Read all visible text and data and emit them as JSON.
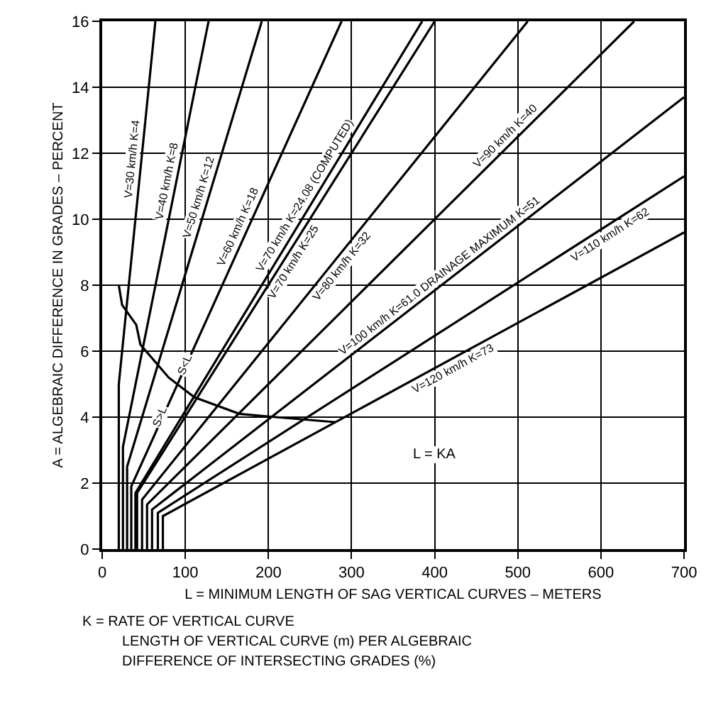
{
  "chart_data": {
    "type": "line",
    "xlabel": "L = MINIMUM LENGTH OF SAG VERTICAL CURVES – METERS",
    "ylabel": "A = ALGEBRAIC DIFFERENCE IN GRADES – PERCENT",
    "series": [
      {
        "name": "V=30 km/h K=4",
        "color": "#000000",
        "x": [
          20,
          20,
          64
        ],
        "values": [
          0,
          5,
          16
        ]
      },
      {
        "name": "V=40 km/h K=8",
        "color": "#000000",
        "x": [
          25,
          25,
          128
        ],
        "values": [
          0,
          3.1,
          16
        ]
      },
      {
        "name": "V=50 km/h K=12",
        "color": "#000000",
        "x": [
          30,
          30,
          192
        ],
        "values": [
          0,
          2.5,
          16
        ]
      },
      {
        "name": "V=60 km/h K=18",
        "color": "#000000",
        "x": [
          35,
          35,
          288
        ],
        "values": [
          0,
          1.9,
          16
        ]
      },
      {
        "name": "V=70 km/h K=24.08 (COMPUTED)",
        "color": "#000000",
        "x": [
          40,
          40,
          385
        ],
        "values": [
          0,
          1.7,
          16
        ]
      },
      {
        "name": "V=70 km/h K=25",
        "color": "#000000",
        "x": [
          42,
          42,
          400
        ],
        "values": [
          0,
          1.7,
          16
        ]
      },
      {
        "name": "V=80 km/h K=32",
        "color": "#000000",
        "x": [
          48,
          48,
          512
        ],
        "values": [
          0,
          1.5,
          16
        ]
      },
      {
        "name": "V=90 km/h K=40",
        "color": "#000000",
        "x": [
          54,
          54,
          640
        ],
        "values": [
          0,
          1.35,
          16
        ]
      },
      {
        "name": "V=100 km/h K=61.0 DRAINAGE MAXIMUM K=51",
        "color": "#000000",
        "x": [
          60,
          60,
          700
        ],
        "values": [
          0,
          1.2,
          13.7
        ]
      },
      {
        "name": "V=110 km/h K=62",
        "color": "#000000",
        "x": [
          67,
          67,
          700
        ],
        "values": [
          0,
          1.1,
          11.3
        ]
      },
      {
        "name": "V=120 km/h K=73",
        "color": "#000000",
        "x": [
          73,
          73,
          700
        ],
        "values": [
          0,
          1.0,
          9.6
        ]
      },
      {
        "color": "#000000",
        "x": [
          20,
          24,
          41,
          46,
          80,
          111,
          165,
          209,
          280
        ],
        "values": [
          8.0,
          7.4,
          6.8,
          6.2,
          5.2,
          4.6,
          4.1,
          4.0,
          3.85
        ]
      }
    ],
    "annotations": [
      "S<L",
      "S>L",
      "L = KA",
      "K = RATE OF VERTICAL CURVE",
      "LENGTH OF VERTICAL CURVE (m) PER ALGEBRAIC",
      "DIFFERENCE OF INTERSECTING GRADES (%)"
    ],
    "xlim": [
      0,
      700
    ],
    "xticks": [
      0,
      100,
      200,
      300,
      400,
      500,
      600,
      700
    ],
    "ylim": [
      0,
      16
    ],
    "yticks": [
      0,
      2,
      4,
      6,
      8,
      10,
      12,
      14,
      16
    ],
    "grid": true,
    "legend": false,
    "marker": "none",
    "line_style": "solid"
  }
}
